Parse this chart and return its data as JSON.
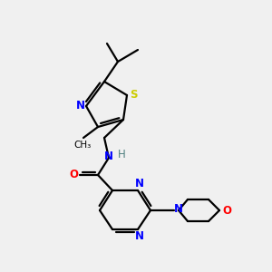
{
  "bg_color": "#f0f0f0",
  "atom_colors": {
    "N": "#0000ff",
    "O": "#ff0000",
    "S": "#cccc00",
    "C": "#000000",
    "H": "#508080"
  },
  "bond_color": "#000000"
}
